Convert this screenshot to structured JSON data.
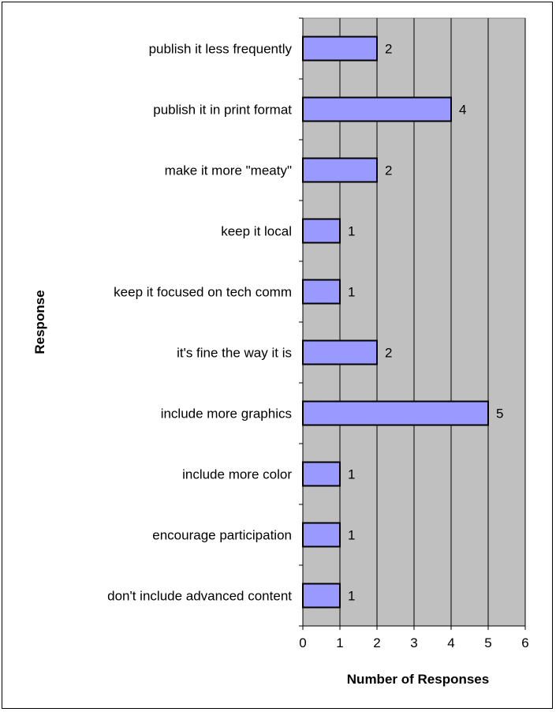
{
  "chart_data": {
    "type": "bar",
    "orientation": "horizontal",
    "categories": [
      "publish it less frequently",
      "publish it in print format",
      "make it more \"meaty\"",
      "keep it local",
      "keep it focused on tech comm",
      "it's fine the way it is",
      "include more graphics",
      "include more color",
      "encourage participation",
      "don't include advanced content"
    ],
    "values": [
      2,
      4,
      2,
      1,
      1,
      2,
      5,
      1,
      1,
      1
    ],
    "title": "",
    "xlabel": "Number of Responses",
    "ylabel": "Response",
    "xlim": [
      0,
      6
    ],
    "x_ticks": [
      "0",
      "1",
      "2",
      "3",
      "4",
      "5",
      "6"
    ],
    "grid": true,
    "legend": "none",
    "colors": {
      "bar_fill": "#9999ff",
      "plot_background": "#c0c0c0",
      "gridline": "#000000"
    }
  }
}
